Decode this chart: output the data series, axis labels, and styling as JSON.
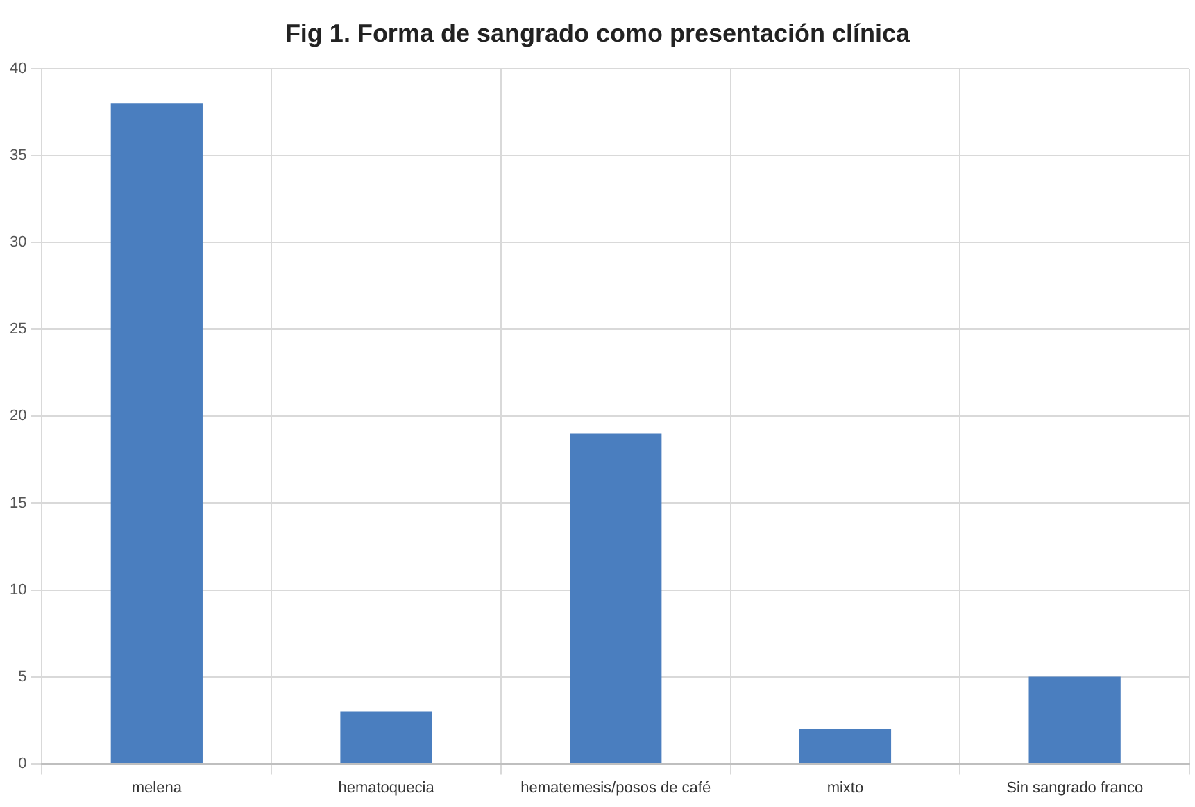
{
  "chart_data": {
    "type": "bar",
    "title": "Fig 1. Forma de sangrado como presentación clínica",
    "categories": [
      "melena",
      "hematoquecia",
      "hematemesis/posos de café",
      "mixto",
      "Sin sangrado franco"
    ],
    "values": [
      38,
      3,
      19,
      2,
      5
    ],
    "color": "#4a7ebf",
    "ylim": [
      0,
      40
    ],
    "yticks": [
      0,
      5,
      10,
      15,
      20,
      25,
      30,
      35,
      40
    ],
    "grid": true,
    "legend": false
  }
}
